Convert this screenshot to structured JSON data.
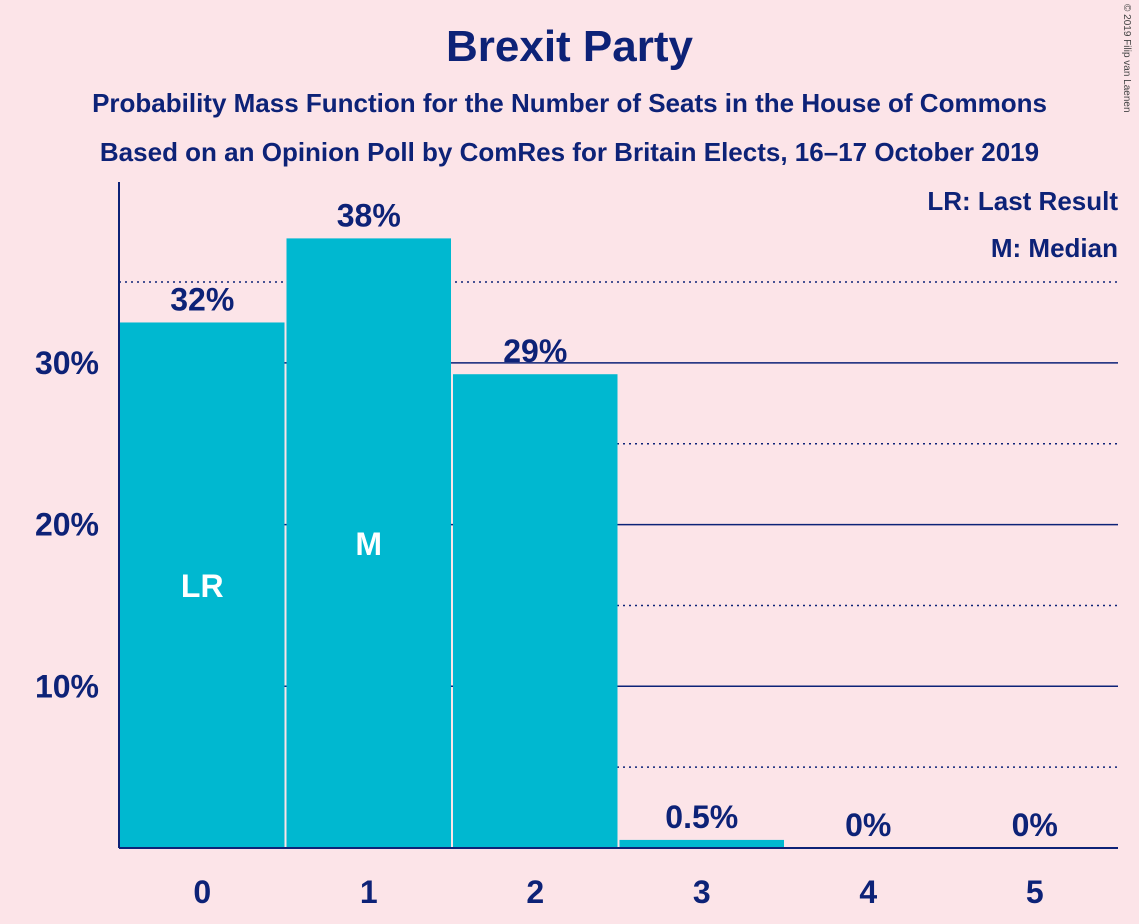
{
  "chart_data": {
    "type": "bar",
    "title": "Brexit Party",
    "subtitle_lines": [
      "Probability Mass Function for the Number of Seats in the House of Commons",
      "Based on an Opinion Poll by ComRes for Britain Elects, 16–17 October 2019"
    ],
    "categories": [
      "0",
      "1",
      "2",
      "3",
      "4",
      "5"
    ],
    "values": [
      32.5,
      37.7,
      29.3,
      0.5,
      0,
      0
    ],
    "data_labels": [
      "32%",
      "38%",
      "29%",
      "0.5%",
      "0%",
      "0%"
    ],
    "bar_annotations": [
      "LR",
      "M",
      "",
      "",
      "",
      ""
    ],
    "ylim": [
      0,
      41
    ],
    "y_ticks": [
      10,
      20,
      30
    ],
    "y_tick_labels": [
      "10%",
      "20%",
      "30%"
    ],
    "y_minor_gridlines": [
      5,
      15,
      25,
      35
    ],
    "legend": [
      "LR: Last Result",
      "M: Median"
    ],
    "legend_position": "top-right",
    "grid": true,
    "colors": {
      "bar": "#00b8d0",
      "text": "#0d2277",
      "background": "#fce4e8"
    }
  },
  "copyright": "© 2019 Filip van Laenen"
}
